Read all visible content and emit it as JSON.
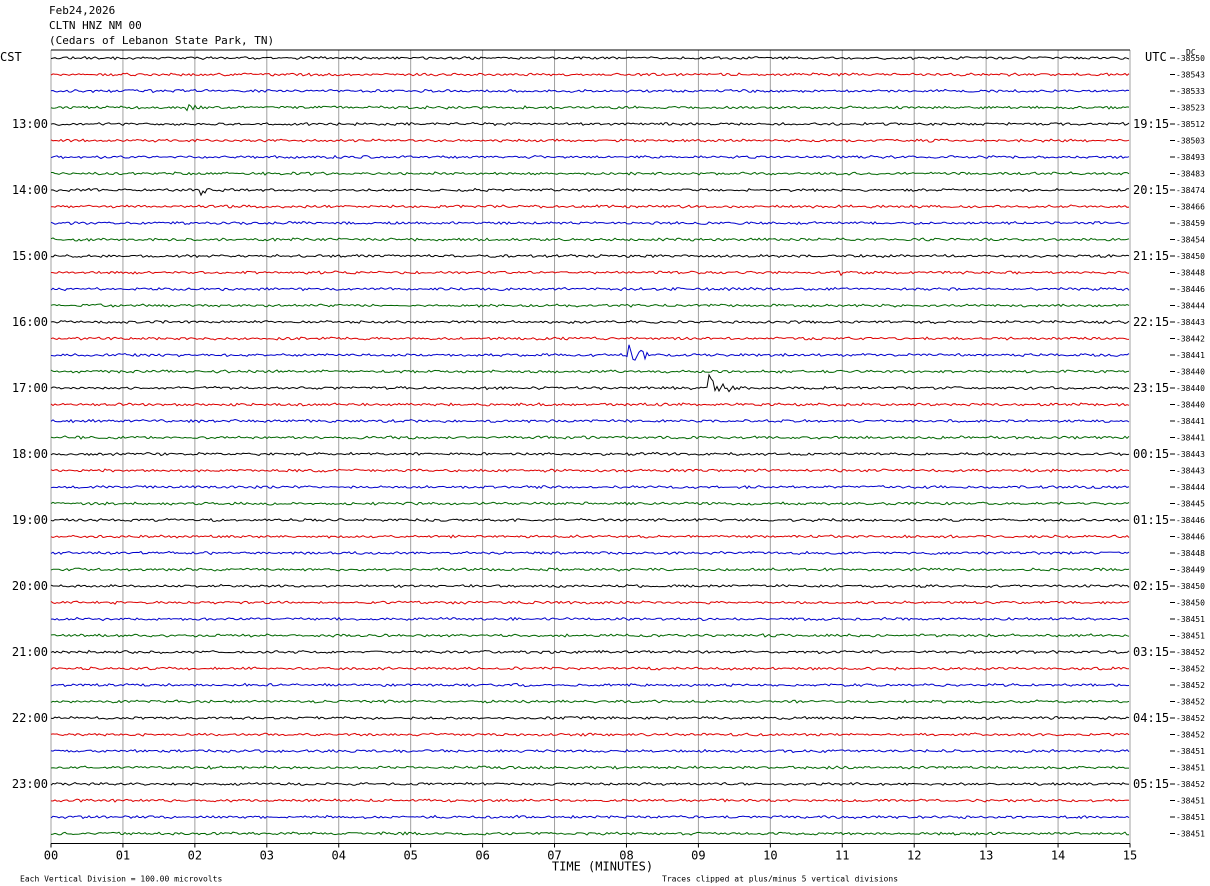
{
  "header": {
    "date": "Feb24,2026",
    "station": "CLTN HNZ NM 00",
    "location": "(Cedars of Lebanon State Park, TN)"
  },
  "chart_data": {
    "type": "line",
    "title": "",
    "left_axis_label": "CST",
    "right_axis_label": "UTC",
    "dc_label": "DC",
    "xlabel": "TIME (MINUTES)",
    "xlim": [
      0,
      15
    ],
    "x_ticks": [
      "00",
      "01",
      "02",
      "03",
      "04",
      "05",
      "06",
      "07",
      "08",
      "09",
      "10",
      "11",
      "12",
      "13",
      "14",
      "15"
    ],
    "left_hour_labels": [
      "13:00",
      "14:00",
      "15:00",
      "16:00",
      "17:00",
      "18:00",
      "19:00",
      "20:00",
      "21:00",
      "22:00",
      "23:00"
    ],
    "right_hour_labels": [
      "19:15",
      "20:15",
      "21:15",
      "22:15",
      "23:15",
      "00:15",
      "01:15",
      "02:15",
      "03:15",
      "04:15",
      "05:15"
    ],
    "first_labeled_trace": 4,
    "traces_per_hour": 4,
    "trace_colors": [
      "#000000",
      "#dd0000",
      "#0000cc",
      "#006600"
    ],
    "dc_offsets": [
      -38550,
      -38543,
      -38533,
      -38523,
      -38512,
      -38503,
      -38493,
      -38483,
      -38474,
      -38466,
      -38459,
      -38454,
      -38450,
      -38448,
      -38446,
      -38444,
      -38443,
      -38442,
      -38441,
      -38440,
      -38440,
      -38440,
      -38441,
      -38441,
      -38443,
      -38443,
      -38444,
      -38445,
      -38446,
      -38446,
      -38448,
      -38449,
      -38450,
      -38450,
      -38451,
      -38451,
      -38452,
      -38452,
      -38452,
      -38452,
      -38452,
      -38452,
      -38451,
      -38451,
      -38452,
      -38451,
      -38451,
      -38451
    ],
    "events": [
      {
        "trace": 3,
        "minute": 1.9,
        "amplitude": 0.35,
        "duration": 0.5
      },
      {
        "trace": 8,
        "minute": 2.1,
        "amplitude": 0.45,
        "duration": 0.4
      },
      {
        "trace": 13,
        "minute": 11.0,
        "amplitude": 0.15,
        "duration": 0.8
      },
      {
        "trace": 15,
        "minute": 0.5,
        "amplitude": 0.15,
        "duration": 0.6
      },
      {
        "trace": 18,
        "minute": 8.0,
        "amplitude": 1.0,
        "duration": 0.9
      },
      {
        "trace": 20,
        "minute": 9.15,
        "amplitude": 1.0,
        "duration": 0.9
      }
    ],
    "footer_left": "Each Vertical Division =  100.00 microvolts",
    "footer_right": "Traces clipped at plus/minus 5 vertical divisions"
  }
}
